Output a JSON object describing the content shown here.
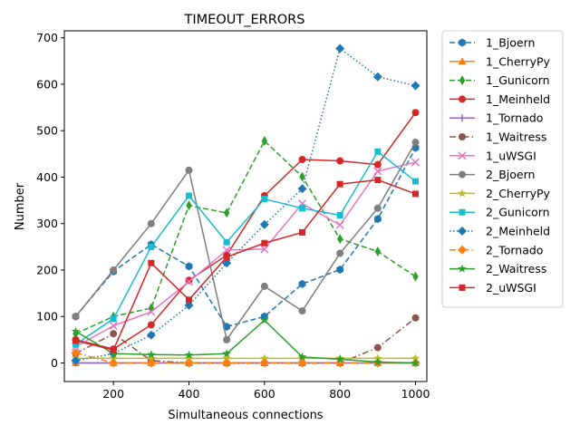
{
  "chart_data": {
    "type": "line",
    "title": "TIMEOUT_ERRORS",
    "xlabel": "Simultaneous connections",
    "ylabel": "Number",
    "xlim": [
      70,
      1030
    ],
    "ylim": [
      -40,
      715
    ],
    "xticks": [
      200,
      400,
      600,
      800,
      1000
    ],
    "yticks": [
      0,
      100,
      200,
      300,
      400,
      500,
      600,
      700
    ],
    "x": [
      100,
      200,
      300,
      400,
      500,
      600,
      700,
      800,
      900,
      1000
    ],
    "legend_position": "outside-right",
    "series": [
      {
        "name": "1_Bjoern",
        "color": "#1f77b4",
        "dash": "dashed",
        "marker": "hexagon",
        "values": [
          100,
          197,
          255,
          208,
          78,
          100,
          170,
          201,
          310,
          463
        ]
      },
      {
        "name": "1_CherryPy",
        "color": "#ff7f0e",
        "dash": "solid",
        "marker": "triangle-up",
        "values": [
          0,
          0,
          0,
          0,
          0,
          0,
          0,
          0,
          0,
          0
        ]
      },
      {
        "name": "1_Gunicorn",
        "color": "#2ca02c",
        "dash": "dashed",
        "marker": "thin-diamond",
        "values": [
          63,
          100,
          118,
          339,
          323,
          478,
          401,
          267,
          240,
          186
        ]
      },
      {
        "name": "1_Meinheld",
        "color": "#d62728",
        "dash": "solid",
        "marker": "circle",
        "values": [
          50,
          30,
          82,
          178,
          232,
          360,
          438,
          435,
          427,
          539
        ]
      },
      {
        "name": "1_Tornado",
        "color": "#9467bd",
        "dash": "solid",
        "marker": "plus",
        "values": [
          0,
          0,
          0,
          0,
          0,
          0,
          0,
          0,
          0,
          0
        ]
      },
      {
        "name": "1_Waitress",
        "color": "#8c564b",
        "dash": "dashdot",
        "marker": "circle",
        "values": [
          20,
          63,
          5,
          0,
          0,
          0,
          0,
          0,
          33,
          97
        ]
      },
      {
        "name": "1_uWSGI",
        "color": "#e377c2",
        "dash": "solid",
        "marker": "x",
        "values": [
          35,
          80,
          110,
          175,
          243,
          245,
          343,
          297,
          413,
          432
        ]
      },
      {
        "name": "2_Bjoern",
        "color": "#7f7f7f",
        "dash": "solid",
        "marker": "circle",
        "values": [
          100,
          200,
          300,
          415,
          50,
          165,
          112,
          236,
          333,
          475
        ]
      },
      {
        "name": "2_CherryPy",
        "color": "#bcbd22",
        "dash": "solid",
        "marker": "star",
        "values": [
          10,
          10,
          10,
          10,
          10,
          10,
          10,
          10,
          10,
          10
        ]
      },
      {
        "name": "2_Gunicorn",
        "color": "#17becf",
        "dash": "solid",
        "marker": "square",
        "values": [
          40,
          95,
          250,
          360,
          260,
          353,
          333,
          318,
          455,
          391
        ]
      },
      {
        "name": "2_Meinheld",
        "color": "#1f77b4",
        "dash": "dotted",
        "marker": "diamond",
        "values": [
          5,
          20,
          60,
          124,
          215,
          298,
          375,
          677,
          616,
          597
        ]
      },
      {
        "name": "2_Tornado",
        "color": "#ff7f0e",
        "dash": "dashdot",
        "marker": "diamond",
        "values": [
          22,
          0,
          0,
          0,
          0,
          0,
          0,
          0,
          0,
          0
        ]
      },
      {
        "name": "2_Waitress",
        "color": "#2ca02c",
        "dash": "solid",
        "marker": "star",
        "values": [
          68,
          20,
          18,
          17,
          20,
          92,
          13,
          8,
          2,
          0
        ]
      },
      {
        "name": "2_uWSGI",
        "color": "#d62728",
        "dash": "solid",
        "marker": "square",
        "values": [
          48,
          28,
          215,
          136,
          228,
          258,
          281,
          385,
          394,
          364
        ]
      }
    ]
  }
}
